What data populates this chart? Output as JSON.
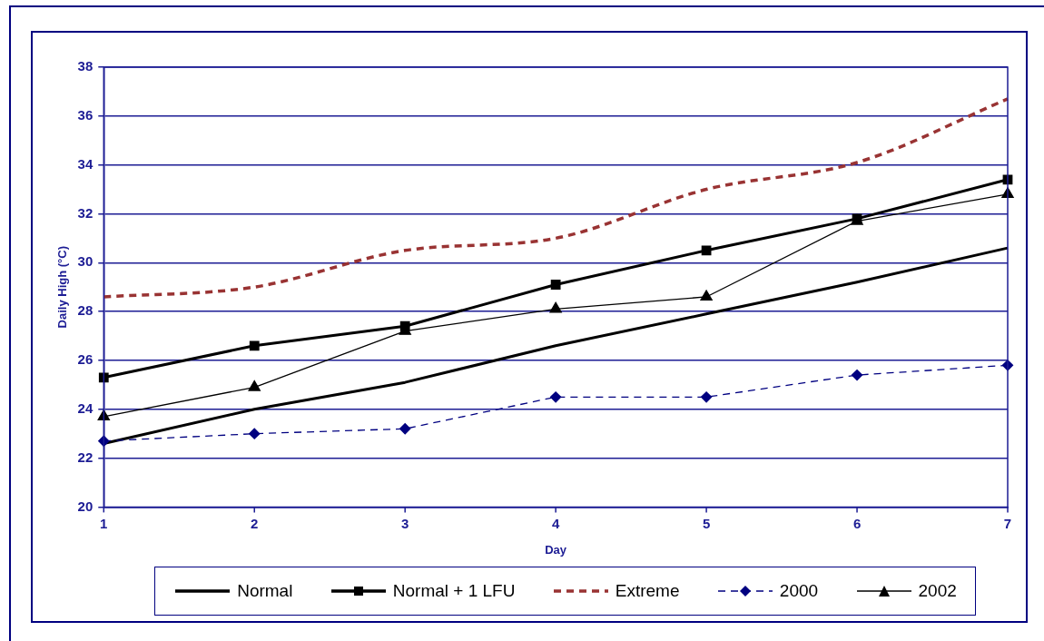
{
  "chart_data": {
    "type": "line",
    "xlabel": "Day",
    "ylabel": "Daily High (°C)",
    "x": [
      1,
      2,
      3,
      4,
      5,
      6,
      7
    ],
    "xlim": [
      1,
      7
    ],
    "xticks": [
      1,
      2,
      3,
      4,
      5,
      6,
      7
    ],
    "ylim": [
      20,
      38
    ],
    "yticks": [
      20,
      22,
      24,
      26,
      28,
      30,
      32,
      34,
      36,
      38
    ],
    "grid": "y",
    "legend": "bottom",
    "series": [
      {
        "name": "Normal",
        "color": "#000000",
        "marker": "none",
        "line_style": "solid",
        "values": [
          22.6,
          24.0,
          25.1,
          26.6,
          27.9,
          29.2,
          30.6
        ]
      },
      {
        "name": "Normal + 1 LFU",
        "color": "#000000",
        "marker": "square",
        "line_style": "solid",
        "values": [
          25.3,
          26.6,
          27.4,
          29.1,
          30.5,
          31.8,
          33.4
        ]
      },
      {
        "name": "Extreme",
        "color": "#993333",
        "marker": "none",
        "line_style": "dashed",
        "values": [
          28.6,
          29.0,
          30.5,
          31.0,
          33.0,
          34.1,
          36.7
        ]
      },
      {
        "name": "2000",
        "color": "#000080",
        "marker": "diamond",
        "line_style": "dashed",
        "values": [
          22.7,
          23.0,
          23.2,
          24.5,
          24.5,
          25.4,
          25.8
        ]
      },
      {
        "name": "2002",
        "color": "#000000",
        "marker": "triangle",
        "line_style": "solid",
        "values": [
          23.7,
          24.9,
          27.2,
          28.1,
          28.6,
          31.7,
          32.8
        ]
      }
    ]
  }
}
